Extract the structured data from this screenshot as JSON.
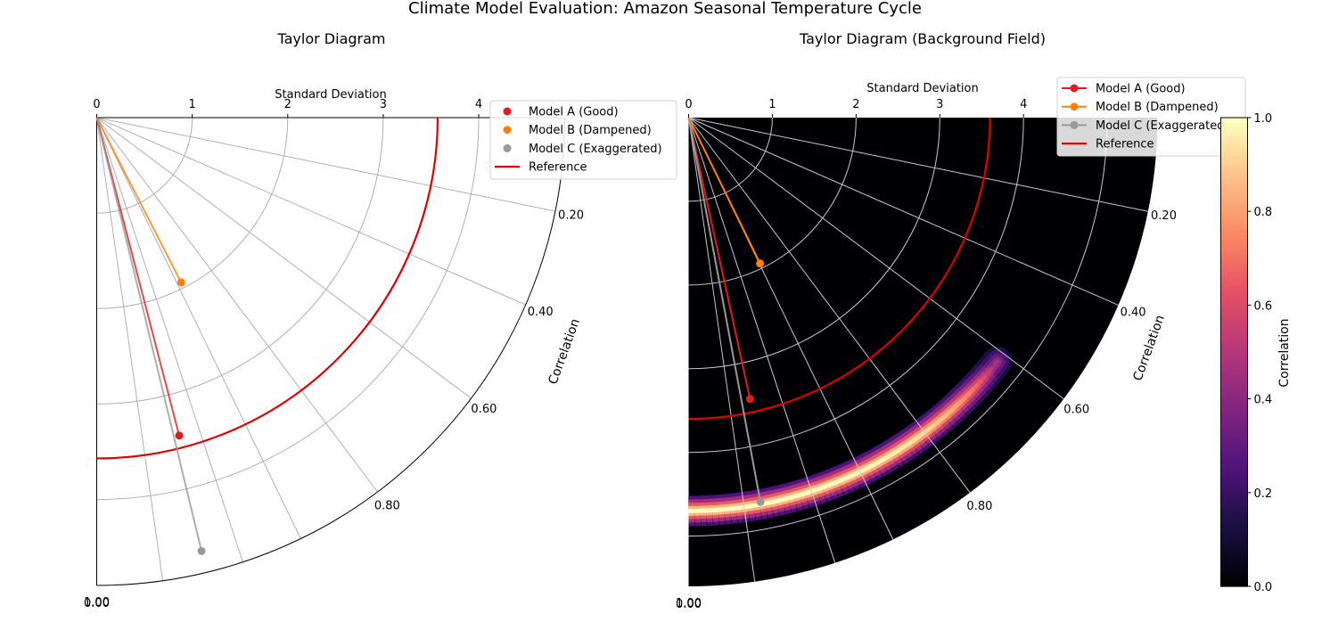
{
  "figure_title": "Climate Model Evaluation: Amazon Seasonal Temperature Cycle",
  "colors": {
    "reference": "#e00000",
    "grid": "#b0b0b0",
    "grid_dark": "#c8c8d0",
    "heat_bg": "#000004"
  },
  "chart_data": [
    {
      "type": "scatter",
      "title": "Taylor Diagram",
      "radial_axis_label": "Standard Deviation",
      "angular_axis_label": "Correlation",
      "std_ticks": [
        "0",
        "1",
        "2",
        "3",
        "4"
      ],
      "std_ticks_values": [
        0,
        1,
        2,
        3,
        4
      ],
      "std_grid": [
        1,
        2,
        3,
        4
      ],
      "corr_ticks": [
        {
          "value": 0.0,
          "label": "0.00"
        },
        {
          "value": 0.2,
          "label": "0.20"
        },
        {
          "value": 0.4,
          "label": "0.40"
        },
        {
          "value": 0.6,
          "label": "0.60"
        },
        {
          "value": 0.8,
          "label": "0.80"
        },
        {
          "value": 1.0,
          "label": "1.00"
        }
      ],
      "corr_grid": [
        0.2,
        0.4,
        0.6,
        0.8,
        0.9,
        0.95,
        0.99
      ],
      "std_max": 4.9,
      "reference_std": 3.57,
      "series": [
        {
          "name": "Model A (Good)",
          "color": "#e41a1c",
          "std": 3.44,
          "corr": 0.968
        },
        {
          "name": "Model B (Dampened)",
          "color": "#ff7f0e",
          "std": 1.94,
          "corr": 0.89
        },
        {
          "name": "Model C (Exaggerated)",
          "color": "#999999",
          "std": 4.67,
          "corr": 0.972
        }
      ],
      "legend": {
        "position": "upper-right",
        "markers_only": true,
        "entries": [
          "Model A (Good)",
          "Model B (Dampened)",
          "Model C (Exaggerated)",
          "Reference"
        ]
      }
    },
    {
      "type": "heatmap",
      "title": "Taylor Diagram (Background Field)",
      "radial_axis_label": "Standard Deviation",
      "angular_axis_label": "Correlation",
      "std_ticks": [
        "0",
        "1",
        "2",
        "3",
        "4"
      ],
      "std_ticks_values": [
        0,
        1,
        2,
        3,
        4
      ],
      "std_grid": [
        1,
        2,
        3,
        4,
        5
      ],
      "corr_ticks": [
        {
          "value": 0.0,
          "label": "0.00"
        },
        {
          "value": 0.2,
          "label": "0.20"
        },
        {
          "value": 0.4,
          "label": "0.40"
        },
        {
          "value": 0.6,
          "label": "0.60"
        },
        {
          "value": 0.8,
          "label": "0.80"
        },
        {
          "value": 1.0,
          "label": "1.00"
        }
      ],
      "corr_grid": [
        0.2,
        0.4,
        0.6,
        0.8,
        0.9,
        0.95,
        0.99
      ],
      "std_max": 5.6,
      "reference_std": 3.6,
      "band": {
        "std": 4.7,
        "corr_min": 0.62,
        "corr_max": 1.0
      },
      "series": [
        {
          "name": "Model A (Good)",
          "color": "#e41a1c",
          "std": 3.44,
          "corr": 0.977
        },
        {
          "name": "Model B (Dampened)",
          "color": "#ff7f0e",
          "std": 1.94,
          "corr": 0.898
        },
        {
          "name": "Model C (Exaggerated)",
          "color": "#999999",
          "std": 4.67,
          "corr": 0.983
        }
      ],
      "legend": {
        "position": "upper-right",
        "markers_only": false,
        "entries": [
          "Model A (Good)",
          "Model B (Dampened)",
          "Model C (Exaggerated)",
          "Reference"
        ]
      },
      "colorbar": {
        "label": "Correlation",
        "ticks": [
          "0.0",
          "0.2",
          "0.4",
          "0.6",
          "0.8",
          "1.0"
        ],
        "tick_values": [
          0,
          0.2,
          0.4,
          0.6,
          0.8,
          1.0
        ],
        "colormap": "magma"
      }
    }
  ]
}
